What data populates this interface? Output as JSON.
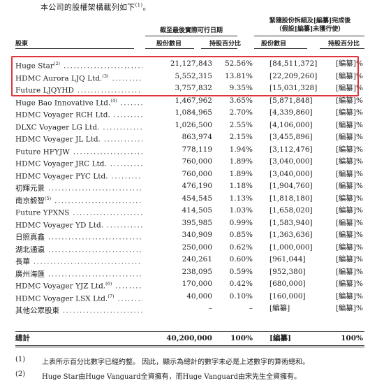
{
  "intro": {
    "text": "本公司的股權架構載列如下",
    "sup": "(1)",
    "tail": "。"
  },
  "headers": {
    "group1": "截至最後實際可行日期",
    "group2_line1": "緊隨股份拆細及[編纂]完成後",
    "group2_line2": "（假設[編纂]未獲行使）",
    "shareholders": "股東",
    "shares": "股份數目",
    "pct": "持股百分比",
    "shares2": "股份數目",
    "pct2": "持股百分比"
  },
  "rows": [
    {
      "name": "Huge Star",
      "sup": "(2)",
      "shares": "21,127,843",
      "pct": "52.56%",
      "post": "[84,511,372]",
      "post_pct": "[編纂]%"
    },
    {
      "name": "HDMC Aurora LJQ Ltd.",
      "sup": "(3)",
      "shares": "5,552,315",
      "pct": "13.81%",
      "post": "[22,209,260]",
      "post_pct": "[編纂]%"
    },
    {
      "name": "Future LJQYHD",
      "sup": "",
      "shares": "3,757,832",
      "pct": "9.35%",
      "post": "[15,031,328]",
      "post_pct": "[編纂]%"
    },
    {
      "name": "Huge Bao Innovative Ltd.",
      "sup": "(4)",
      "shares": "1,467,962",
      "pct": "3.65%",
      "post": "[5,871,848]",
      "post_pct": "[編纂]%"
    },
    {
      "name": "HDMC Voyager RCH Ltd.",
      "sup": "",
      "shares": "1,084,965",
      "pct": "2.70%",
      "post": "[4,339,860]",
      "post_pct": "[編纂]%"
    },
    {
      "name": "DLXC Voyager LG Ltd.",
      "sup": "",
      "shares": "1,026,500",
      "pct": "2.55%",
      "post": "[4,106,000]",
      "post_pct": "[編纂]%"
    },
    {
      "name": "HDMC Voyager JL Ltd.",
      "sup": "",
      "shares": "863,974",
      "pct": "2.15%",
      "post": "[3,455,896]",
      "post_pct": "[編纂]%"
    },
    {
      "name": "Future HFYJW",
      "sup": "",
      "shares": "778,119",
      "pct": "1.94%",
      "post": "[3,112,476]",
      "post_pct": "[編纂]%"
    },
    {
      "name": "HDMC Voyager JRC Ltd.",
      "sup": "",
      "shares": "760,000",
      "pct": "1.89%",
      "post": "[3,040,000]",
      "post_pct": "[編纂]%"
    },
    {
      "name": "HDMC Voyager PYC Ltd.",
      "sup": "",
      "shares": "760,000",
      "pct": "1.89%",
      "post": "[3,040,000]",
      "post_pct": "[編纂]%"
    },
    {
      "name": "初輝元景",
      "sup": "",
      "shares": "476,190",
      "pct": "1.18%",
      "post": "[1,904,760]",
      "post_pct": "[編纂]%"
    },
    {
      "name": "南京毅智",
      "sup": "(5)",
      "shares": "454,545",
      "pct": "1.13%",
      "post": "[1,818,180]",
      "post_pct": "[編纂]%"
    },
    {
      "name": "Future YPXNS",
      "sup": "",
      "shares": "414,505",
      "pct": "1.03%",
      "post": "[1,658,020]",
      "post_pct": "[編纂]%"
    },
    {
      "name": "HDMC Voyager YD Ltd.",
      "sup": "",
      "shares": "395,985",
      "pct": "0.99%",
      "post": "[1,583,940]",
      "post_pct": "[編纂]%"
    },
    {
      "name": "日照真鑫",
      "sup": "",
      "shares": "340,909",
      "pct": "0.85%",
      "post": "[1,363,636]",
      "post_pct": "[編纂]%"
    },
    {
      "name": "湖北通瀛",
      "sup": "",
      "shares": "250,000",
      "pct": "0.62%",
      "post": "[1,000,000]",
      "post_pct": "[編纂]%"
    },
    {
      "name": "長華",
      "sup": "",
      "shares": "240,261",
      "pct": "0.60%",
      "post": "[961,044]",
      "post_pct": "[編纂]%"
    },
    {
      "name": "廣州海匯",
      "sup": "",
      "shares": "238,095",
      "pct": "0.59%",
      "post": "[952,380]",
      "post_pct": "[編纂]%"
    },
    {
      "name": "HDMC Voyager YJZ Ltd.",
      "sup": "(6)",
      "shares": "170,000",
      "pct": "0.42%",
      "post": "[680,000]",
      "post_pct": "[編纂]%"
    },
    {
      "name": "HDMC Voyager LSX Ltd.",
      "sup": "(7)",
      "shares": "40,000",
      "pct": "0.10%",
      "post": "[160,000]",
      "post_pct": "[編纂]%"
    },
    {
      "name": "其他公眾股東",
      "sup": "",
      "shares": "–",
      "pct": "–",
      "post": "[編纂]",
      "post_pct": "[編纂]%"
    }
  ],
  "total": {
    "name": "總計",
    "shares": "40,200,000",
    "pct": "100%",
    "post": "[編纂]",
    "post_pct": "100%"
  },
  "notes": [
    {
      "num": "(1)",
      "text": "上表所示百分比數字已經約整。 因此，顯示為總計的數字未必是上述數字的算術總和。"
    },
    {
      "num": "(2)",
      "text": "Huge Star由Huge Vanguard全資擁有，而Huge Vanguard由宋先生全資擁有。"
    }
  ]
}
